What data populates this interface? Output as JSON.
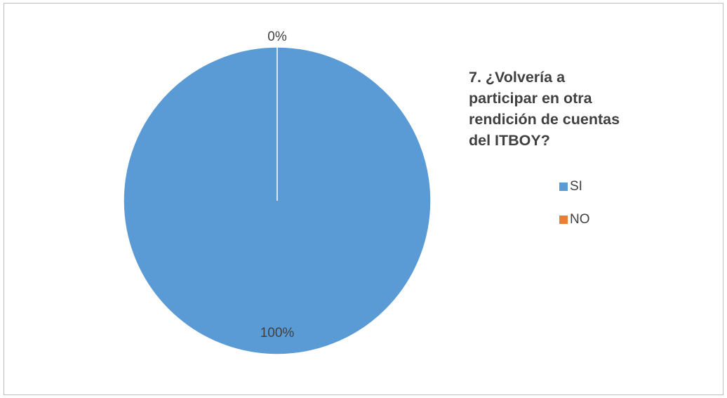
{
  "chart_data": {
    "type": "pie",
    "title": "7.  ¿Volvería a participar en otra rendición de cuentas del ITBOY?",
    "categories": [
      "SI",
      "NO"
    ],
    "values": [
      100,
      0
    ],
    "data_labels": [
      "100%",
      "0%"
    ],
    "colors": [
      "#5b9bd5",
      "#ed7d31"
    ],
    "legend_position": "right"
  }
}
